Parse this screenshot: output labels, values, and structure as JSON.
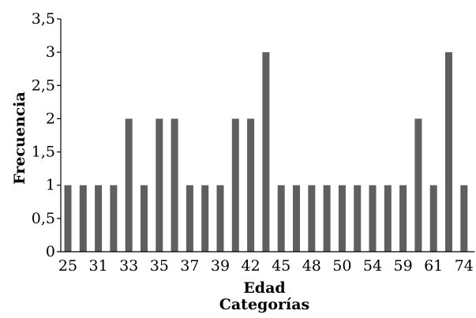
{
  "chart_data": {
    "type": "bar",
    "title": "",
    "xlabel": "Edad",
    "xlabel2": "Categorías",
    "ylabel": "Frecuencia",
    "ylim": [
      0,
      3.5
    ],
    "yticks": [
      "0",
      "0,5",
      "1",
      "1,5",
      "2",
      "2,5",
      "3",
      "3,5"
    ],
    "ytick_values": [
      0,
      0.5,
      1,
      1.5,
      2,
      2.5,
      3,
      3.5
    ],
    "categories": [
      "25",
      "",
      "31",
      "",
      "33",
      "",
      "35",
      "",
      "37",
      "",
      "39",
      "",
      "42",
      "",
      "45",
      "",
      "48",
      "",
      "50",
      "",
      "54",
      "",
      "59",
      "",
      "61",
      "",
      "74"
    ],
    "values": [
      1,
      1,
      1,
      1,
      2,
      1,
      2,
      2,
      1,
      1,
      1,
      2,
      2,
      3,
      1,
      1,
      1,
      1,
      1,
      1,
      1,
      1,
      1,
      2,
      1,
      3,
      1
    ],
    "bar_color": "#5f5f5f",
    "grid": false,
    "legend": "none"
  }
}
